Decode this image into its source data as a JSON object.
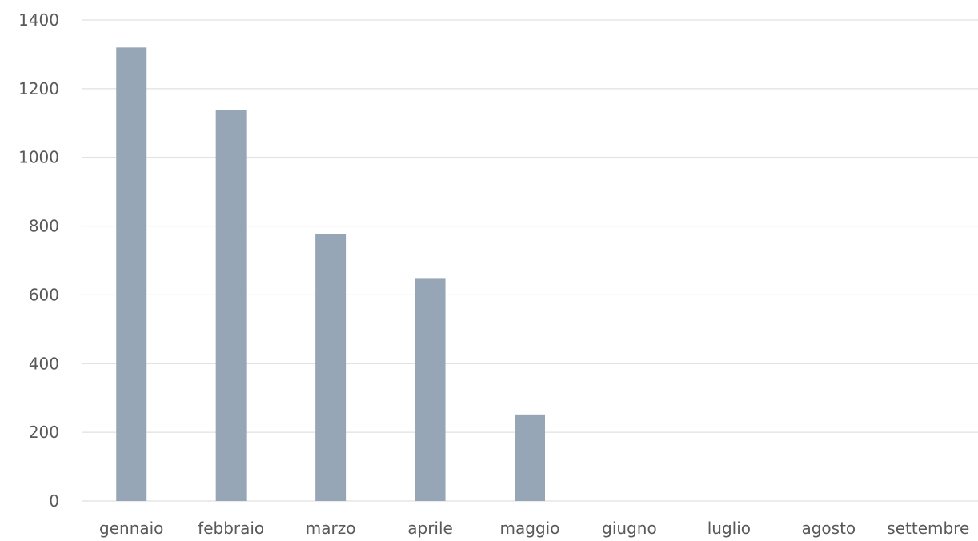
{
  "chart_data": {
    "type": "bar",
    "categories": [
      "gennaio",
      "febbraio",
      "marzo",
      "aprile",
      "maggio",
      "giugno",
      "luglio",
      "agosto",
      "settembre"
    ],
    "series": [
      {
        "values": [
          1320,
          1138,
          777,
          649,
          252,
          null,
          null,
          null,
          null
        ],
        "color": "#97a6b6"
      }
    ],
    "ylim": [
      0,
      1400
    ],
    "yticks": [
      0,
      200,
      400,
      600,
      800,
      1000,
      1200,
      1400
    ],
    "ytick_labels": [
      "0",
      "200",
      "400",
      "600",
      "800",
      "1000",
      "1200",
      "1400"
    ],
    "grid": true,
    "gridline_color": "#d9d9d9",
    "text_color": "#595959",
    "title": "",
    "xlabel": "",
    "ylabel": ""
  }
}
